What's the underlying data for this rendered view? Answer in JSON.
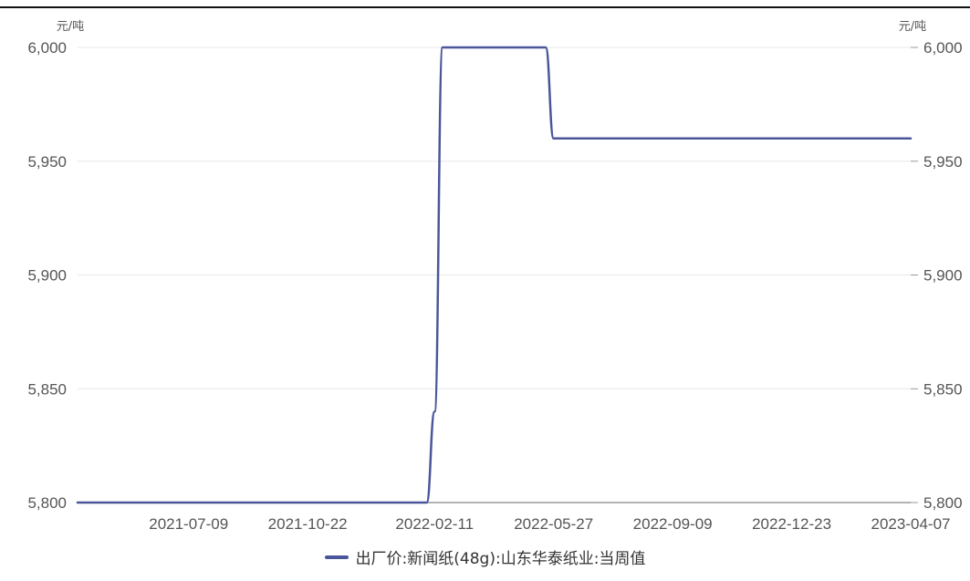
{
  "chart_data": {
    "type": "line",
    "title": "",
    "xlabel": "",
    "ylabel": "元/吨",
    "ylabel_right": "元/吨",
    "y_ticks": [
      5800,
      5850,
      5900,
      5950,
      6000
    ],
    "y_tick_labels": [
      "5,800",
      "5,850",
      "5,900",
      "5,950",
      "6,000"
    ],
    "ylim": [
      5800,
      6000
    ],
    "x_range": [
      "2021-04-02",
      "2023-04-07"
    ],
    "x_ticks": [
      "2021-07-09",
      "2021-10-22",
      "2022-02-11",
      "2022-05-27",
      "2022-09-09",
      "2022-12-23",
      "2023-04-07"
    ],
    "grid": "horizontal",
    "legend_position": "bottom",
    "series": [
      {
        "name": "出厂价:新闻纸(48g):山东华泰纸业:当周值",
        "color": "#4a5699",
        "points": [
          [
            "2021-04-02",
            5800
          ],
          [
            "2022-02-04",
            5800
          ],
          [
            "2022-02-11",
            5840
          ],
          [
            "2022-02-18",
            6000
          ],
          [
            "2022-05-20",
            6000
          ],
          [
            "2022-05-27",
            5960
          ],
          [
            "2023-04-07",
            5960
          ]
        ]
      }
    ]
  }
}
